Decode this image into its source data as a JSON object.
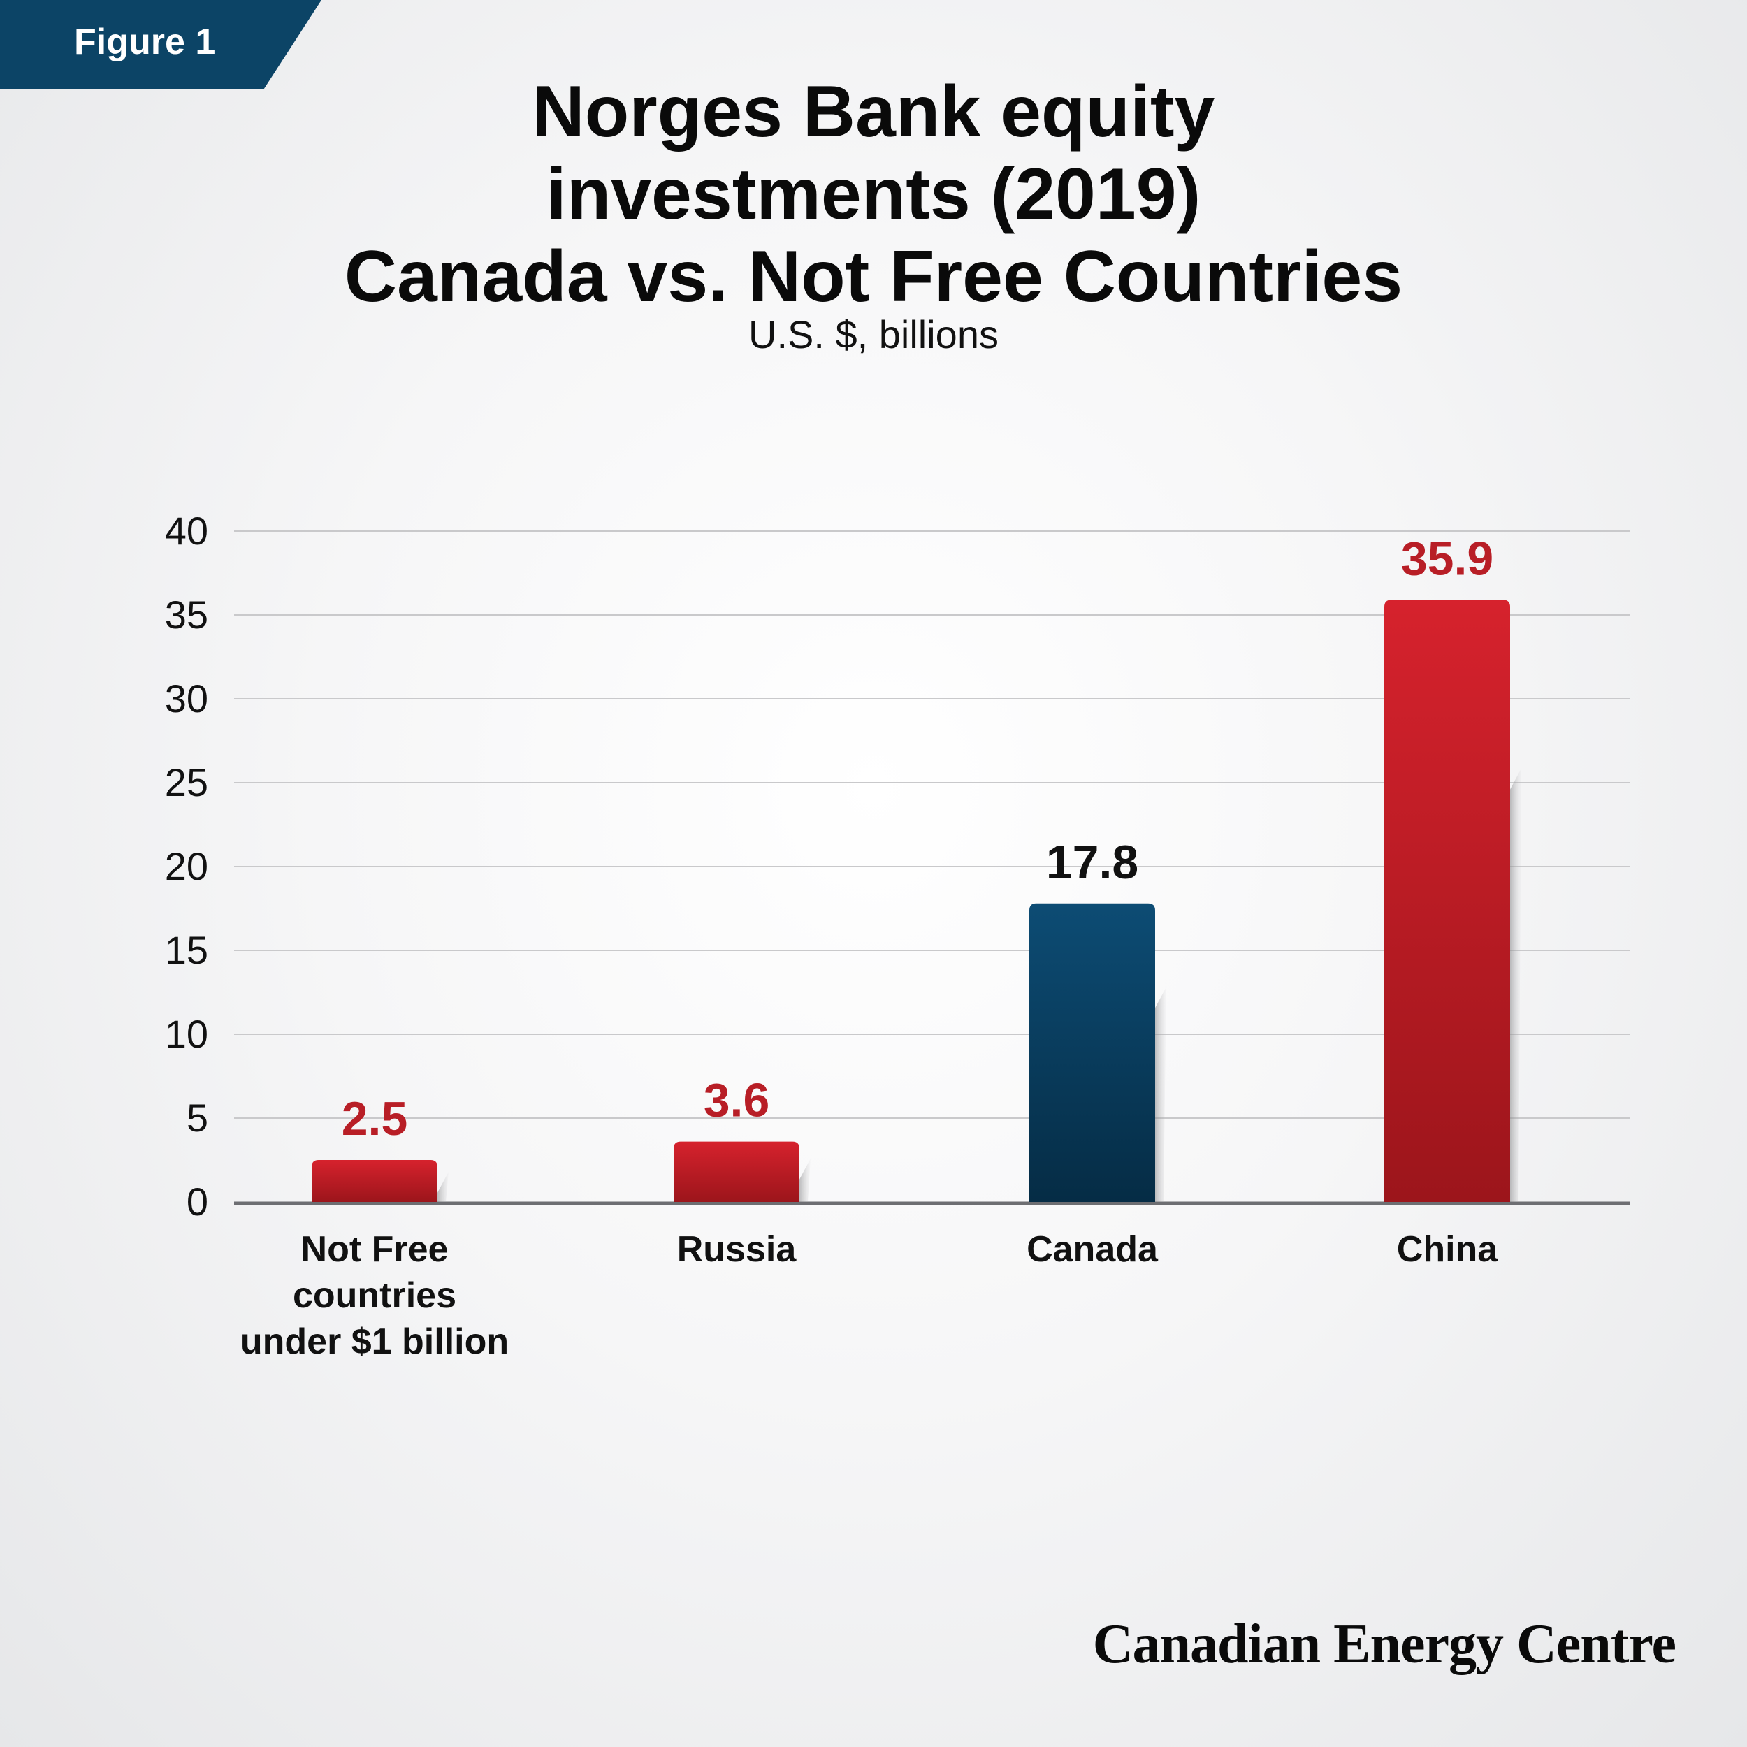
{
  "figure_label": "Figure 1",
  "title_lines": [
    "Norges Bank equity",
    "investments (2019)",
    "Canada vs. Not Free Countries"
  ],
  "subtitle": "U.S. $, billions",
  "logo_text": "Canadian Energy Centre",
  "colors": {
    "red": "#b81e26",
    "blue": "#0b4a70",
    "gridline": "#c9c9cb",
    "axis": "#6d6e72"
  },
  "chart_data": {
    "type": "bar",
    "title": "Norges Bank equity investments (2019) Canada vs. Not Free Countries",
    "ylabel": "U.S. $, billions",
    "xlabel": "",
    "ylim": [
      0,
      40
    ],
    "yticks": [
      0,
      5,
      10,
      15,
      20,
      25,
      30,
      35,
      40
    ],
    "grid": true,
    "categories": [
      [
        "Not Free",
        "countries",
        "under $1 billion"
      ],
      [
        "Russia"
      ],
      [
        "Canada"
      ],
      [
        "China"
      ]
    ],
    "values": [
      2.5,
      3.6,
      17.8,
      35.9
    ],
    "data_labels": [
      "2.5",
      "3.6",
      "17.8",
      "35.9"
    ],
    "bar_colors": [
      "red",
      "red",
      "blue",
      "red"
    ]
  }
}
